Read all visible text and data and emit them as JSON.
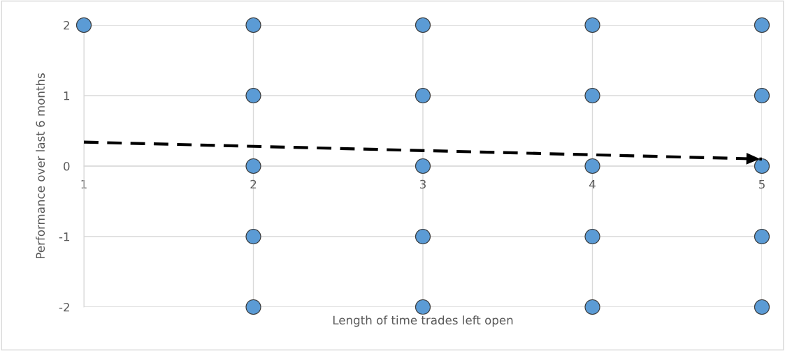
{
  "chart_data": {
    "type": "scatter",
    "xlabel": "Length of time trades left open",
    "ylabel": "Performance over last 6 months",
    "xlim": [
      1,
      5
    ],
    "ylim": [
      -2,
      2
    ],
    "xticks": [
      1,
      2,
      3,
      4,
      5
    ],
    "yticks": [
      -2,
      -1,
      0,
      1,
      2
    ],
    "grid": true,
    "legend": false,
    "series": [
      {
        "marker": "circle",
        "color": "#5b9bd5",
        "x": [
          1,
          2,
          2,
          2,
          2,
          2,
          3,
          3,
          3,
          3,
          3,
          4,
          4,
          4,
          4,
          4,
          5,
          5,
          5,
          5,
          5
        ],
        "values": [
          2,
          2,
          1,
          0,
          -1,
          -2,
          2,
          1,
          0,
          -1,
          -2,
          2,
          1,
          0,
          -1,
          -2,
          2,
          1,
          0,
          -1,
          -2
        ]
      },
      {
        "type": "line",
        "marker": "none",
        "color": "#000000",
        "line_style": "dashed",
        "x": [
          1,
          5
        ],
        "values": [
          0.34,
          0.1
        ]
      }
    ]
  }
}
